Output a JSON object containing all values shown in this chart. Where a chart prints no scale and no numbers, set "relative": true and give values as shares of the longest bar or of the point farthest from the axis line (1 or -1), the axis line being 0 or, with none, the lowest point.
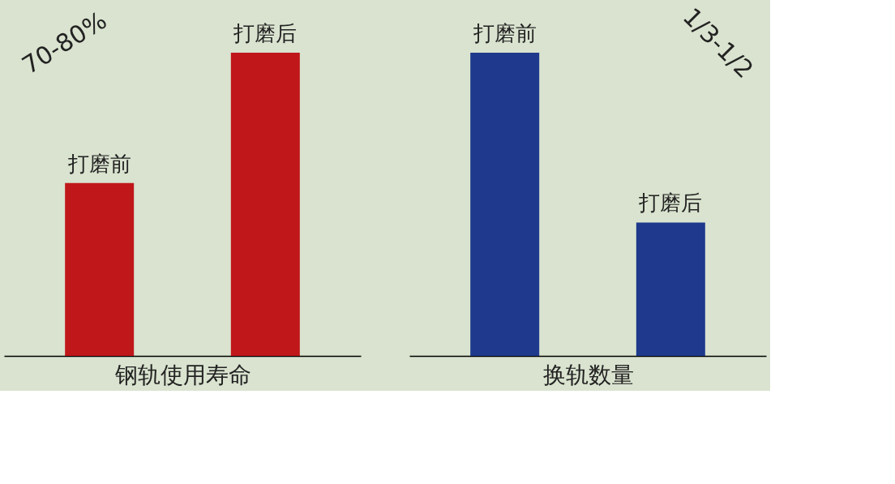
{
  "chart_data": [
    {
      "type": "bar",
      "relative": true,
      "xlabel": "钢轨使用寿命",
      "categories": [
        null,
        null
      ],
      "values": [
        0.57,
        1
      ],
      "color": "#c0171b",
      "grid": false,
      "annotations": [
        {
          "text": "打磨前",
          "y": 0.57
        },
        {
          "text": "打磨后",
          "y": 1
        },
        "70-80%"
      ]
    },
    {
      "type": "bar",
      "relative": true,
      "xlabel": "换轨数量",
      "categories": [
        null,
        null
      ],
      "values": [
        1,
        0.44
      ],
      "color": "#1f3a8c",
      "grid": false,
      "annotations": [
        {
          "text": "打磨前",
          "y": 1
        },
        {
          "text": "打磨后",
          "y": 0.44
        },
        "1/3-1/2"
      ]
    }
  ]
}
